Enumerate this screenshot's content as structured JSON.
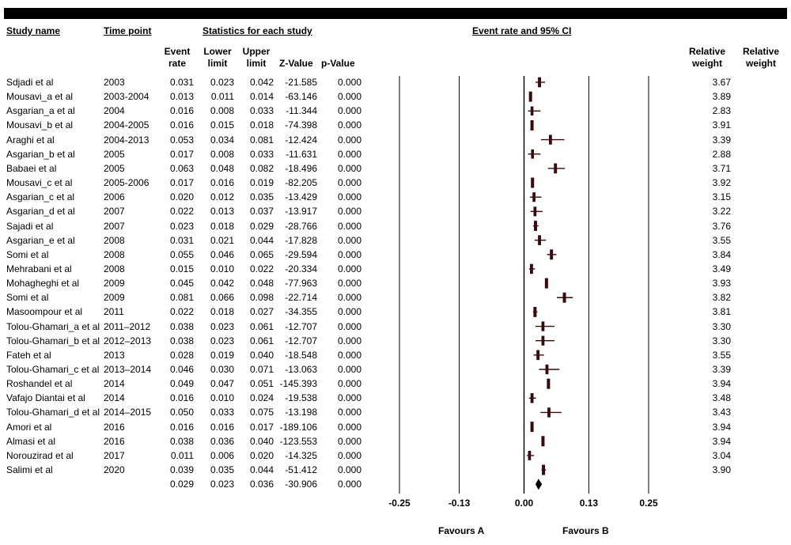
{
  "headers": {
    "study_name": "Study name",
    "time_point": "Time point",
    "statistics": "Statistics for each study",
    "plot_title": "Event rate and 95% CI",
    "event_rate": [
      "Event",
      "rate"
    ],
    "lower_limit": [
      "Lower",
      "limit"
    ],
    "upper_limit": [
      "Upper",
      "limit"
    ],
    "z_value": "Z-Value",
    "p_value": "p-Value",
    "relative_weight_1": [
      "Relative",
      "weight"
    ],
    "relative_weight_2": [
      "Relative",
      "weight"
    ]
  },
  "chart_data": {
    "type": "forest",
    "title": "Event rate and 95% CI",
    "xlim": [
      -0.25,
      0.25
    ],
    "ticks": [
      "-0.25",
      "-0.13",
      "0.00",
      "0.13",
      "0.25"
    ],
    "favours_left": "Favours A",
    "favours_right": "Favours B",
    "studies": [
      {
        "name": "Sdjadi et al",
        "time": "2003",
        "rate": "0.031",
        "lower": "0.023",
        "upper": "0.042",
        "z": "-21.585",
        "p": "0.000",
        "weight": "3.67"
      },
      {
        "name": "Mousavi_a et al",
        "time": "2003-2004",
        "rate": "0.013",
        "lower": "0.011",
        "upper": "0.014",
        "z": "-63.146",
        "p": "0.000",
        "weight": "3.89"
      },
      {
        "name": "Asgarian_a et al",
        "time": "2004",
        "rate": "0.016",
        "lower": "0.008",
        "upper": "0.033",
        "z": "-11.344",
        "p": "0.000",
        "weight": "2.83"
      },
      {
        "name": "Mousavi_b et al",
        "time": "2004-2005",
        "rate": "0.016",
        "lower": "0.015",
        "upper": "0.018",
        "z": "-74.398",
        "p": "0.000",
        "weight": "3.91"
      },
      {
        "name": "Araghi et al",
        "time": "2004-2013",
        "rate": "0.053",
        "lower": "0.034",
        "upper": "0.081",
        "z": "-12.424",
        "p": "0.000",
        "weight": "3.39"
      },
      {
        "name": "Asgarian_b et al",
        "time": "2005",
        "rate": "0.017",
        "lower": "0.008",
        "upper": "0.033",
        "z": "-11.631",
        "p": "0.000",
        "weight": "2.88"
      },
      {
        "name": "Babaei et al",
        "time": "2005",
        "rate": "0.063",
        "lower": "0.048",
        "upper": "0.082",
        "z": "-18.496",
        "p": "0.000",
        "weight": "3.71"
      },
      {
        "name": "Mousavi_c et al",
        "time": "2005-2006",
        "rate": "0.017",
        "lower": "0.016",
        "upper": "0.019",
        "z": "-82.205",
        "p": "0.000",
        "weight": "3.92"
      },
      {
        "name": "Asgarian_c et al",
        "time": "2006",
        "rate": "0.020",
        "lower": "0.012",
        "upper": "0.035",
        "z": "-13.429",
        "p": "0.000",
        "weight": "3.15"
      },
      {
        "name": "Asgarian_d et al",
        "time": "2007",
        "rate": "0.022",
        "lower": "0.013",
        "upper": "0.037",
        "z": "-13.917",
        "p": "0.000",
        "weight": "3.22"
      },
      {
        "name": "Sajadi et al",
        "time": "2007",
        "rate": "0.023",
        "lower": "0.018",
        "upper": "0.029",
        "z": "-28.766",
        "p": "0.000",
        "weight": "3.76"
      },
      {
        "name": "Asgarian_e et al",
        "time": "2008",
        "rate": "0.031",
        "lower": "0.021",
        "upper": "0.044",
        "z": "-17.828",
        "p": "0.000",
        "weight": "3.55"
      },
      {
        "name": "Somi et al",
        "time": "2008",
        "rate": "0.055",
        "lower": "0.046",
        "upper": "0.065",
        "z": "-29.594",
        "p": "0.000",
        "weight": "3.84"
      },
      {
        "name": "Mehrabani et al",
        "time": "2008",
        "rate": "0.015",
        "lower": "0.010",
        "upper": "0.022",
        "z": "-20.334",
        "p": "0.000",
        "weight": "3.49"
      },
      {
        "name": "Mohagheghi et al",
        "time": "2009",
        "rate": "0.045",
        "lower": "0.042",
        "upper": "0.048",
        "z": "-77.963",
        "p": "0.000",
        "weight": "3.93"
      },
      {
        "name": "Somi et al",
        "time": "2009",
        "rate": "0.081",
        "lower": "0.066",
        "upper": "0.098",
        "z": "-22.714",
        "p": "0.000",
        "weight": "3.82"
      },
      {
        "name": "Masoompour et al",
        "time": "2011",
        "rate": "0.022",
        "lower": "0.018",
        "upper": "0.027",
        "z": "-34.355",
        "p": "0.000",
        "weight": "3.81"
      },
      {
        "name": "Tolou-Ghamari_a et al",
        "time": "2011–2012",
        "rate": "0.038",
        "lower": "0.023",
        "upper": "0.061",
        "z": "-12.707",
        "p": "0.000",
        "weight": "3.30"
      },
      {
        "name": "Tolou-Ghamari_b et al",
        "time": "2012–2013",
        "rate": "0.038",
        "lower": "0.023",
        "upper": "0.061",
        "z": "-12.707",
        "p": "0.000",
        "weight": "3.30"
      },
      {
        "name": "Fateh et al",
        "time": "2013",
        "rate": "0.028",
        "lower": "0.019",
        "upper": "0.040",
        "z": "-18.548",
        "p": "0.000",
        "weight": "3.55"
      },
      {
        "name": "Tolou-Ghamari_c et al",
        "time": "2013–2014",
        "rate": "0.046",
        "lower": "0.030",
        "upper": "0.071",
        "z": "-13.063",
        "p": "0.000",
        "weight": "3.39"
      },
      {
        "name": "Roshandel et al",
        "time": "2014",
        "rate": "0.049",
        "lower": "0.047",
        "upper": "0.051",
        "z": "-145.393",
        "p": "0.000",
        "weight": "3.94"
      },
      {
        "name": "Vafajo Diantai et al",
        "time": "2014",
        "rate": "0.016",
        "lower": "0.010",
        "upper": "0.024",
        "z": "-19.538",
        "p": "0.000",
        "weight": "3.48"
      },
      {
        "name": "Tolou-Ghamari_d et al",
        "time": "2014–2015",
        "rate": "0.050",
        "lower": "0.033",
        "upper": "0.075",
        "z": "-13.198",
        "p": "0.000",
        "weight": "3.43"
      },
      {
        "name": "Amori et al",
        "time": "2016",
        "rate": "0.016",
        "lower": "0.016",
        "upper": "0.017",
        "z": "-189.106",
        "p": "0.000",
        "weight": "3.94"
      },
      {
        "name": "Almasi et al",
        "time": "2016",
        "rate": "0.038",
        "lower": "0.036",
        "upper": "0.040",
        "z": "-123.553",
        "p": "0.000",
        "weight": "3.94"
      },
      {
        "name": "Norouzirad et al",
        "time": "2017",
        "rate": "0.011",
        "lower": "0.006",
        "upper": "0.020",
        "z": "-14.325",
        "p": "0.000",
        "weight": "3.04"
      },
      {
        "name": "Salimi et al",
        "time": "2020",
        "rate": "0.039",
        "lower": "0.035",
        "upper": "0.044",
        "z": "-51.412",
        "p": "0.000",
        "weight": "3.90"
      }
    ],
    "summary": {
      "rate": "0.029",
      "lower": "0.023",
      "upper": "0.036",
      "z": "-30.906",
      "p": "0.000"
    }
  }
}
